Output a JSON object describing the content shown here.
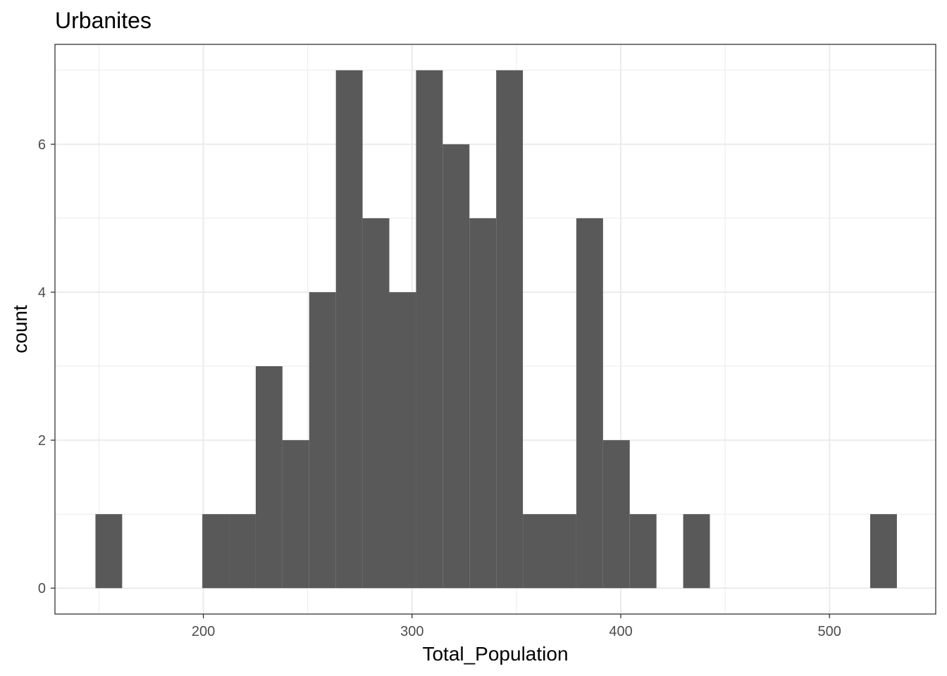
{
  "chart_data": {
    "type": "bar",
    "title": "Urbanites",
    "xlabel": "Total_Population",
    "ylabel": "count",
    "xlim": [
      128.9,
      550.9
    ],
    "ylim": [
      -0.35,
      7.35
    ],
    "x_ticks": [
      200,
      300,
      400,
      500
    ],
    "x_minor_ticks": [
      150,
      250,
      350,
      450
    ],
    "y_ticks": [
      0,
      2,
      4,
      6
    ],
    "y_minor_ticks": [
      1,
      3,
      5,
      7
    ],
    "grid": true,
    "bar_color": "#595959",
    "bins": [
      {
        "x0": 148.3,
        "x1": 161.1,
        "count": 1
      },
      {
        "x0": 199.5,
        "x1": 212.3,
        "count": 1
      },
      {
        "x0": 212.3,
        "x1": 225.1,
        "count": 1
      },
      {
        "x0": 225.1,
        "x1": 237.9,
        "count": 3
      },
      {
        "x0": 237.9,
        "x1": 250.7,
        "count": 2
      },
      {
        "x0": 250.7,
        "x1": 263.5,
        "count": 4
      },
      {
        "x0": 263.5,
        "x1": 276.3,
        "count": 7
      },
      {
        "x0": 276.3,
        "x1": 289.1,
        "count": 5
      },
      {
        "x0": 289.1,
        "x1": 301.9,
        "count": 4
      },
      {
        "x0": 301.9,
        "x1": 314.7,
        "count": 7
      },
      {
        "x0": 314.7,
        "x1": 327.5,
        "count": 6
      },
      {
        "x0": 327.5,
        "x1": 340.3,
        "count": 5
      },
      {
        "x0": 340.3,
        "x1": 353.1,
        "count": 7
      },
      {
        "x0": 353.1,
        "x1": 365.9,
        "count": 1
      },
      {
        "x0": 365.9,
        "x1": 378.7,
        "count": 1
      },
      {
        "x0": 378.7,
        "x1": 391.5,
        "count": 5
      },
      {
        "x0": 391.5,
        "x1": 404.3,
        "count": 2
      },
      {
        "x0": 404.3,
        "x1": 417.1,
        "count": 1
      },
      {
        "x0": 429.9,
        "x1": 442.7,
        "count": 1
      },
      {
        "x0": 519.5,
        "x1": 532.3,
        "count": 1
      }
    ]
  }
}
